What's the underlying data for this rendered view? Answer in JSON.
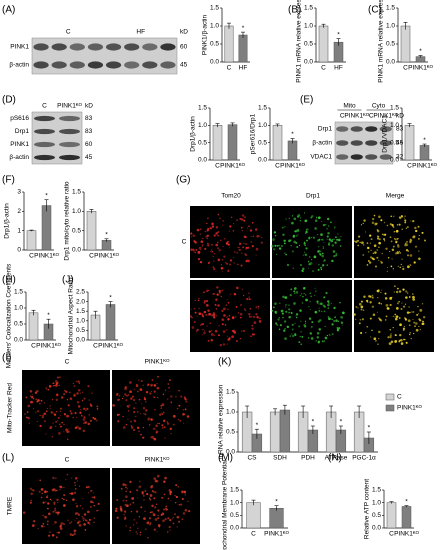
{
  "panel_labels": [
    "(A)",
    "(B)",
    "(C)",
    "(D)",
    "(E)",
    "(F)",
    "(G)",
    "(H)",
    "(J)",
    "(I)",
    "(K)",
    "(L)",
    "(M)",
    "(N)"
  ],
  "chart_data": [
    {
      "type": "bar",
      "title": "PINK1/β-actin",
      "categories": [
        "C",
        "HF"
      ],
      "values": [
        1.0,
        0.75
      ],
      "errors": [
        0.08,
        0.08
      ],
      "colors": [
        "#d4d4d4",
        "#7f7f7f"
      ],
      "ylim": [
        0,
        1.5
      ],
      "yticks": [
        {
          "value": 0,
          "label": "0.0"
        },
        {
          "value": 0.5,
          "label": "0.5"
        },
        {
          "value": 1,
          "label": "1.0"
        },
        {
          "value": 1.5,
          "label": "1.5"
        }
      ],
      "annotation": "*"
    },
    {
      "type": "bar",
      "title": "PINK1 mRNA relative expression",
      "categories": [
        "C",
        "HF"
      ],
      "values": [
        1.0,
        0.55
      ],
      "errors": [
        0.05,
        0.1
      ],
      "colors": [
        "#d4d4d4",
        "#7f7f7f"
      ],
      "ylim": [
        0,
        1.5
      ],
      "yticks": [
        {
          "value": 0,
          "label": "0.0"
        },
        {
          "value": 0.5,
          "label": "0.5"
        },
        {
          "value": 1,
          "label": "1.0"
        },
        {
          "value": 1.5,
          "label": "1.5"
        }
      ],
      "annotation": "*"
    },
    {
      "type": "bar",
      "title": "PINK1 mRNA relative expression",
      "categories": [
        "C",
        "PINK1ᴷᴼ"
      ],
      "values": [
        1.0,
        0.15
      ],
      "errors": [
        0.1,
        0.03
      ],
      "colors": [
        "#d4d4d4",
        "#7f7f7f"
      ],
      "ylim": [
        0,
        1.5
      ],
      "yticks": [
        {
          "value": 0,
          "label": "0.0"
        },
        {
          "value": 0.5,
          "label": "0.5"
        },
        {
          "value": 1,
          "label": "1.0"
        },
        {
          "value": 1.5,
          "label": "1.5"
        }
      ],
      "annotation": "*"
    },
    {
      "type": "bar",
      "title": "Drp1/β-actin",
      "categories": [
        "C",
        "PINK1ᴷᴼ"
      ],
      "values": [
        1.0,
        1.02
      ],
      "errors": [
        0.05,
        0.05
      ],
      "colors": [
        "#d4d4d4",
        "#7f7f7f"
      ],
      "ylim": [
        0,
        1.5
      ],
      "yticks": [
        {
          "value": 0,
          "label": "0.0"
        },
        {
          "value": 0.5,
          "label": "0.5"
        },
        {
          "value": 1,
          "label": "1.0"
        },
        {
          "value": 1.5,
          "label": "1.5"
        }
      ]
    },
    {
      "type": "bar",
      "title": "pSer616/Drp1",
      "categories": [
        "C",
        "PINK1ᴷᴼ"
      ],
      "values": [
        1.0,
        0.55
      ],
      "errors": [
        0.04,
        0.07
      ],
      "colors": [
        "#d4d4d4",
        "#7f7f7f"
      ],
      "ylim": [
        0,
        1.5
      ],
      "yticks": [
        {
          "value": 0,
          "label": "0.0"
        },
        {
          "value": 0.5,
          "label": "0.5"
        },
        {
          "value": 1,
          "label": "1.0"
        },
        {
          "value": 1.5,
          "label": "1.5"
        }
      ],
      "annotation": "*"
    },
    {
      "type": "bar",
      "title": "Drp1/VDAC1",
      "categories": [
        "C",
        "PINK1ᴷᴼ"
      ],
      "values": [
        1.0,
        0.42
      ],
      "errors": [
        0.05,
        0.04
      ],
      "colors": [
        "#d4d4d4",
        "#7f7f7f"
      ],
      "ylim": [
        0,
        1.5
      ],
      "yticks": [
        {
          "value": 0,
          "label": "0.0"
        },
        {
          "value": 0.5,
          "label": "0.5"
        },
        {
          "value": 1,
          "label": "1.0"
        },
        {
          "value": 1.5,
          "label": "1.5"
        }
      ],
      "annotation": "*"
    },
    {
      "type": "bar",
      "title": "Drp1/β-actin",
      "categories": [
        "C",
        "PINK1ᴷᴼ"
      ],
      "values": [
        1.0,
        2.3
      ],
      "errors": [
        0.03,
        0.3
      ],
      "colors": [
        "#d4d4d4",
        "#7f7f7f"
      ],
      "ylim": [
        0,
        3
      ],
      "yticks": [
        0,
        1,
        2,
        3
      ],
      "annotation": "*"
    },
    {
      "type": "bar",
      "title": "Drp1 mito/cyto relative ratio",
      "categories": [
        "C",
        "PINK1ᴷᴼ"
      ],
      "values": [
        1.0,
        0.25
      ],
      "errors": [
        0.05,
        0.04
      ],
      "colors": [
        "#d4d4d4",
        "#7f7f7f"
      ],
      "ylim": [
        0,
        1.5
      ],
      "yticks": [
        {
          "value": 0,
          "label": "0.0"
        },
        {
          "value": 0.5,
          "label": "0.5"
        },
        {
          "value": 1,
          "label": "1.0"
        },
        {
          "value": 1.5,
          "label": "1.5"
        }
      ],
      "annotation": "*"
    },
    {
      "type": "bar",
      "title": "Manders' Colocalization Coefficients",
      "categories": [
        "C",
        "PINK1ᴷᴼ"
      ],
      "values": [
        0.85,
        0.5
      ],
      "errors": [
        0.08,
        0.15
      ],
      "colors": [
        "#d4d4d4",
        "#7f7f7f"
      ],
      "ylim": [
        0,
        1.5
      ],
      "yticks": [
        {
          "value": 0,
          "label": "0.0"
        },
        {
          "value": 0.5,
          "label": "0.5"
        },
        {
          "value": 1,
          "label": "1.0"
        },
        {
          "value": 1.5,
          "label": "1.5"
        }
      ],
      "annotation": "*"
    },
    {
      "type": "bar",
      "title": "Mitochondrial Aspect Ratio",
      "categories": [
        "C",
        "PINK1ᴷᴼ"
      ],
      "values": [
        1.3,
        1.85
      ],
      "errors": [
        0.2,
        0.15
      ],
      "colors": [
        "#d4d4d4",
        "#7f7f7f"
      ],
      "ylim": [
        0,
        2.5
      ],
      "yticks": [
        {
          "value": 0,
          "label": "0.0"
        },
        {
          "value": 0.5,
          "label": "0.5"
        },
        {
          "value": 1,
          "label": "1.0"
        },
        {
          "value": 1.5,
          "label": "1.5"
        },
        {
          "value": 2,
          "label": "2.0"
        },
        {
          "value": 2.5,
          "label": "2.5"
        }
      ],
      "annotation": "*"
    },
    {
      "type": "grouped",
      "title": "mRNA relative expression",
      "categories": [
        "CS",
        "SDH",
        "PDH",
        "ATPase",
        "PGC-1α"
      ],
      "series": [
        {
          "name": "C",
          "color": "#d4d4d4",
          "values": [
            1.0,
            1.0,
            1.0,
            1.0,
            1.0
          ],
          "errors": [
            0.15,
            0.08,
            0.15,
            0.15,
            0.15
          ]
        },
        {
          "name": "PINK1ᴷᴼ",
          "color": "#7f7f7f",
          "values": [
            0.45,
            1.05,
            0.55,
            0.55,
            0.35
          ],
          "errors": [
            0.12,
            0.12,
            0.1,
            0.1,
            0.15
          ]
        }
      ],
      "ylim": [
        0,
        1.5
      ],
      "yticks": [
        {
          "value": 0,
          "label": "0.0"
        },
        {
          "value": 0.5,
          "label": "0.5"
        },
        {
          "value": 1,
          "label": "1.0"
        },
        {
          "value": 1.5,
          "label": "1.5"
        }
      ],
      "annotations": [
        {
          "text": "*",
          "category": "CS"
        },
        {
          "text": "*",
          "category": "PDH"
        },
        {
          "text": "*",
          "category": "ATPase"
        },
        {
          "text": "*",
          "category": "PGC-1α"
        }
      ]
    },
    {
      "type": "bar",
      "title": "Mitochondrial Membrane Potential",
      "categories": [
        "C",
        "PINK1ᴷᴼ"
      ],
      "values": [
        1.0,
        0.78
      ],
      "errors": [
        0.1,
        0.1
      ],
      "colors": [
        "#d4d4d4",
        "#7f7f7f"
      ],
      "ylim": [
        0,
        1.5
      ],
      "yticks": [
        {
          "value": 0,
          "label": "0.0"
        },
        {
          "value": 0.5,
          "label": "0.5"
        },
        {
          "value": 1,
          "label": "1.0"
        },
        {
          "value": 1.5,
          "label": "1.5"
        }
      ],
      "annotation": "*"
    },
    {
      "type": "bar",
      "title": "Relative ATP content",
      "categories": [
        "C",
        "PINK1ᴷᴼ"
      ],
      "values": [
        1.0,
        0.85
      ],
      "errors": [
        0.04,
        0.03
      ],
      "colors": [
        "#d4d4d4",
        "#7f7f7f"
      ],
      "ylim": [
        0,
        1.5
      ],
      "yticks": [
        {
          "value": 0,
          "label": "0.0"
        },
        {
          "value": 0.5,
          "label": "0.5"
        },
        {
          "value": 1,
          "label": "1.0"
        },
        {
          "value": 1.5,
          "label": "1.5"
        }
      ],
      "annotation": "*"
    }
  ],
  "blots": [
    {
      "header": [
        "C",
        "HF"
      ],
      "unit": "kD",
      "rows": [
        "PINK1",
        "β-actin"
      ],
      "sizes": [
        60,
        45
      ]
    },
    {
      "header": [
        "C",
        "PINK1ᴷᴼ"
      ],
      "unit": "kD",
      "rows": [
        "pS616",
        "Drp1",
        "PINK1",
        "β-actin"
      ],
      "sizes": [
        83,
        83,
        60,
        45
      ]
    },
    {
      "groups": [
        "Mito",
        "Cyto"
      ],
      "header": [
        "C",
        "PINK1ᴷᴼ",
        "C",
        "PINK1ᴷᴼ"
      ],
      "unit": "kD",
      "rows": [
        "Drp1",
        "β-actin",
        "VDAC1"
      ],
      "sizes": [
        83,
        45,
        32
      ]
    }
  ],
  "images": [
    {
      "columns": [
        "Tom20",
        "Drp1",
        "Merge"
      ],
      "rows": [
        "C"
      ]
    },
    {
      "columns": [
        "C",
        "PINK1ᴷᴼ"
      ],
      "side": "Mito-Tracker Red"
    },
    {
      "columns": [
        "C",
        "PINK1ᴷᴼ"
      ],
      "side": "TMRE"
    }
  ]
}
